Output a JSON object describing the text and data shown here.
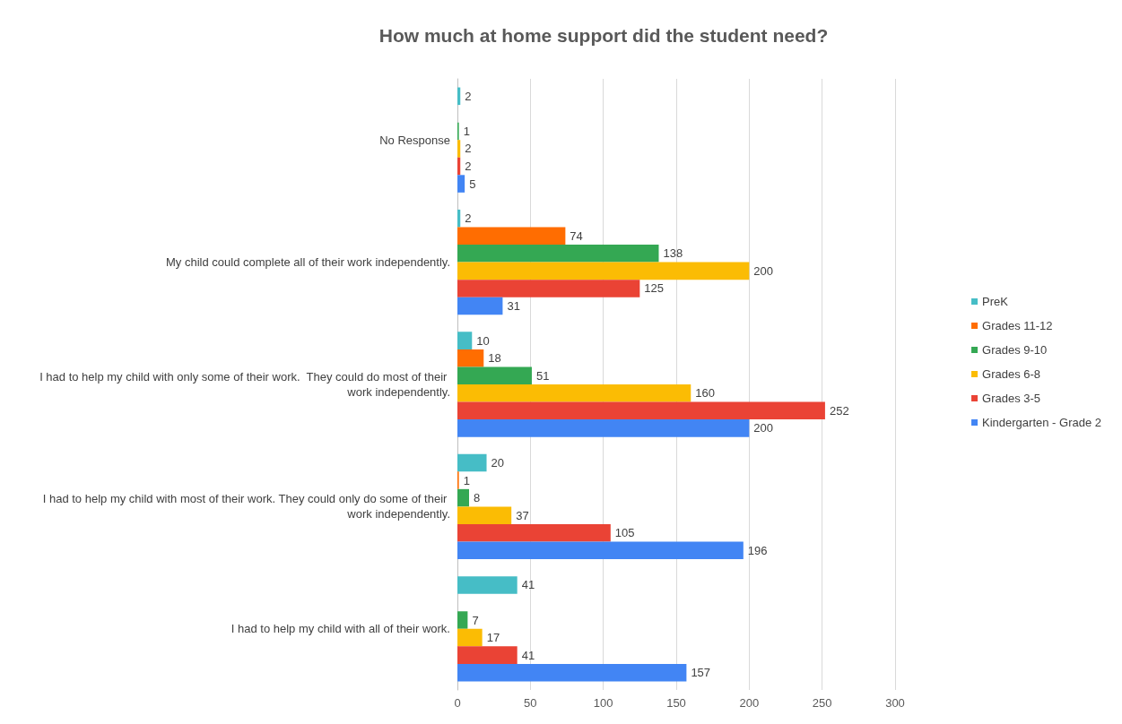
{
  "chart_data": {
    "type": "bar",
    "orientation": "horizontal",
    "title": "How much at home support did the student need?",
    "categories": [
      "No Response",
      "My child could complete all of their work independently.",
      "I had to help my child with only some of their work.  They could do most of their work independently.",
      "I had to help my child with most of their work. They could only do some of their work independently.",
      "I had to help my child with all of their work."
    ],
    "series": [
      {
        "name": "PreK",
        "color": "#46bdc6",
        "values": [
          2,
          2,
          10,
          20,
          41
        ]
      },
      {
        "name": "Grades 11-12",
        "color": "#ff6d01",
        "values": [
          null,
          74,
          18,
          1,
          null
        ]
      },
      {
        "name": "Grades 9-10",
        "color": "#34a853",
        "values": [
          1,
          138,
          51,
          8,
          7
        ]
      },
      {
        "name": "Grades 6-8",
        "color": "#fbbc04",
        "values": [
          2,
          200,
          160,
          37,
          17
        ]
      },
      {
        "name": "Grades 3-5",
        "color": "#ea4335",
        "values": [
          2,
          125,
          252,
          105,
          41
        ]
      },
      {
        "name": "Kindergarten - Grade 2",
        "color": "#4285f4",
        "values": [
          5,
          31,
          200,
          196,
          157
        ]
      }
    ],
    "xlim": [
      0,
      300
    ],
    "xticks": [
      0,
      50,
      100,
      150,
      200,
      250,
      300
    ],
    "grid": "x",
    "legend": "right",
    "data_labels": true
  }
}
